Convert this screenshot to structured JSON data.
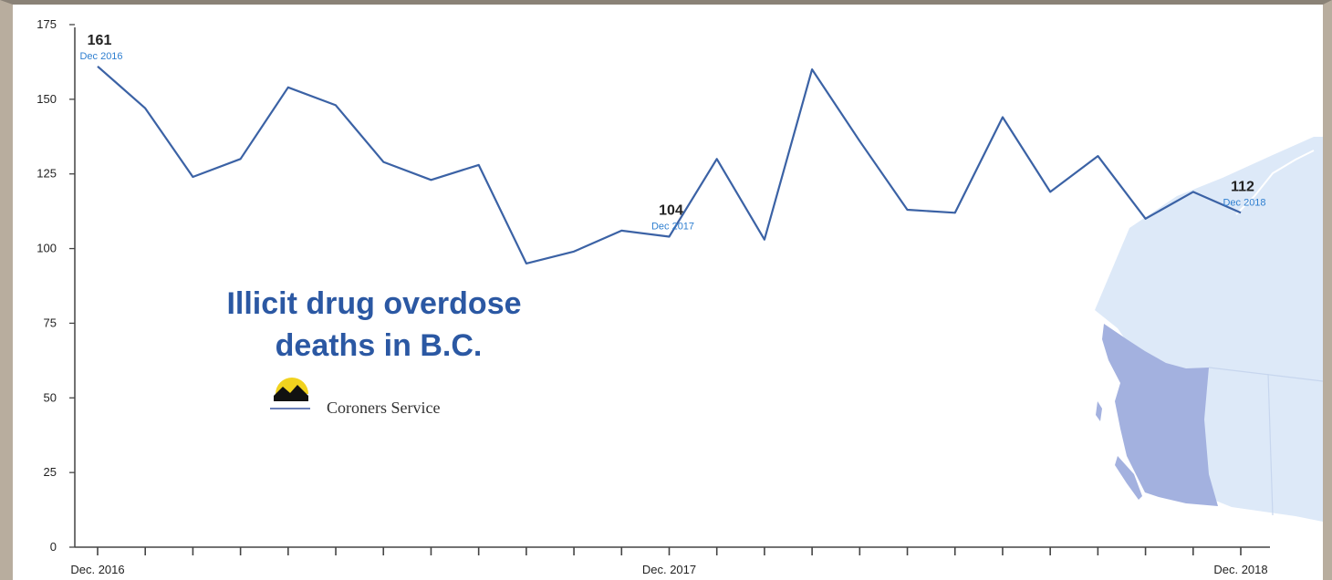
{
  "chart_data": {
    "type": "line",
    "title": [
      "Illicit drug overdose",
      "deaths in B.C."
    ],
    "agency": "Coroners Service",
    "ylim": [
      0,
      175
    ],
    "yticks": [
      0,
      25,
      50,
      75,
      100,
      125,
      150,
      175
    ],
    "xtick_labels": [
      {
        "index": 0,
        "label": "Dec. 2016"
      },
      {
        "index": 12,
        "label": "Dec. 2017"
      },
      {
        "index": 24,
        "label": "Dec. 2018"
      }
    ],
    "values": [
      161,
      147,
      124,
      130,
      154,
      148,
      129,
      123,
      128,
      95,
      99,
      106,
      104,
      130,
      103,
      160,
      136,
      113,
      112,
      144,
      119,
      131,
      110,
      119,
      112
    ],
    "annotations": [
      {
        "index": 0,
        "value": "161",
        "date": "Dec 2016"
      },
      {
        "index": 12,
        "value": "104",
        "date": "Dec 2017"
      },
      {
        "index": 24,
        "value": "112",
        "date": "Dec 2018"
      }
    ],
    "colors": {
      "line": "#3b62a5",
      "title": "#2b58a3",
      "annotation_date": "#2f7fd0",
      "map_bc": "#a3b1df",
      "map_canada": "#dde9f8"
    },
    "grid": false
  }
}
